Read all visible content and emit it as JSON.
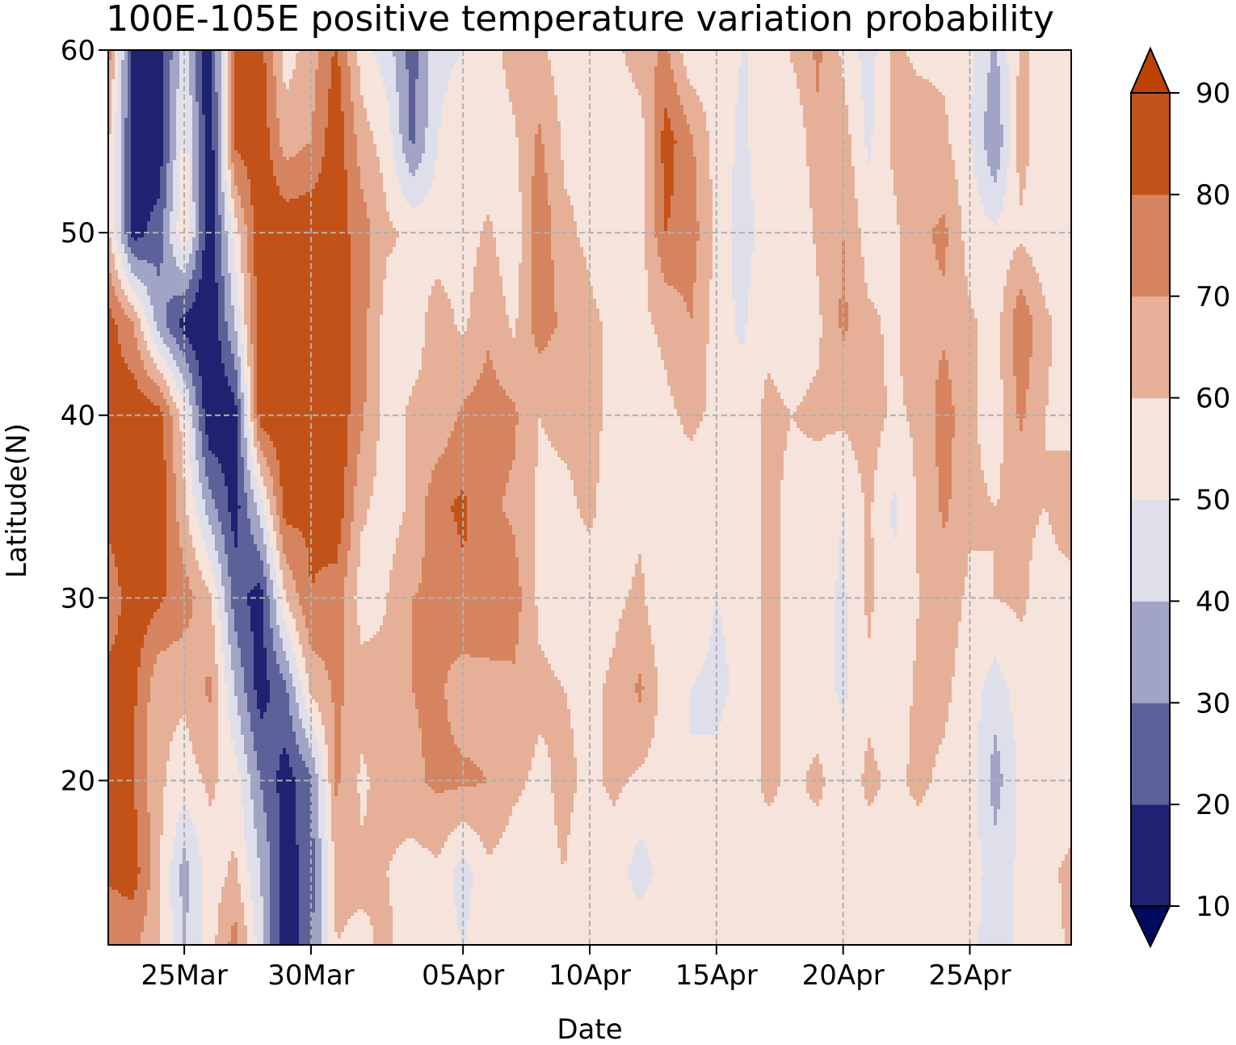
{
  "chart_data": {
    "type": "heatmap",
    "subtype": "filled-contour",
    "title": "100E-105E positive temperature variation probability",
    "xlabel": "Date",
    "ylabel": "Latitude(N)",
    "x_ticks": [
      "25Mar",
      "30Mar",
      "05Apr",
      "10Apr",
      "15Apr",
      "20Apr",
      "25Apr"
    ],
    "x_range": [
      "22Mar",
      "29Apr"
    ],
    "y_ticks": [
      20,
      30,
      40,
      50,
      60
    ],
    "y_range": [
      11,
      60
    ],
    "grid": true,
    "grid_style": "dashed",
    "colorbar": {
      "position": "right",
      "levels": [
        10,
        20,
        30,
        40,
        50,
        60,
        70,
        80,
        90
      ],
      "tick_labels": [
        "10",
        "20",
        "30",
        "40",
        "50",
        "60",
        "70",
        "80",
        "90"
      ],
      "extend": "both",
      "colors": [
        "#000b5e",
        "#1f2270",
        "#5d619a",
        "#a2a4c6",
        "#dedfea",
        "#f5e3dc",
        "#e5b097",
        "#d6845f",
        "#c35219",
        "#bd4200"
      ]
    },
    "x_dates": [
      "22Mar",
      "23Mar",
      "24Mar",
      "25Mar",
      "26Mar",
      "27Mar",
      "28Mar",
      "29Mar",
      "30Mar",
      "31Mar",
      "01Apr",
      "02Apr",
      "03Apr",
      "04Apr",
      "05Apr",
      "06Apr",
      "07Apr",
      "08Apr",
      "09Apr",
      "10Apr",
      "11Apr",
      "12Apr",
      "13Apr",
      "14Apr",
      "15Apr",
      "16Apr",
      "17Apr",
      "18Apr",
      "19Apr",
      "20Apr",
      "21Apr",
      "22Apr",
      "23Apr",
      "24Apr",
      "25Apr",
      "26Apr",
      "27Apr",
      "28Apr",
      "29Apr"
    ],
    "latitudes": [
      60,
      55,
      50,
      45,
      40,
      35,
      30,
      25,
      20,
      15,
      11
    ],
    "values": [
      [
        75,
        15,
        15,
        45,
        10,
        85,
        85,
        55,
        65,
        82,
        55,
        45,
        25,
        48,
        50,
        55,
        65,
        62,
        55,
        58,
        58,
        65,
        72,
        52,
        55,
        50,
        50,
        62,
        72,
        58,
        45,
        62,
        58,
        58,
        52,
        38,
        62,
        55,
        55
      ],
      [
        62,
        15,
        12,
        55,
        10,
        82,
        88,
        65,
        70,
        88,
        65,
        55,
        28,
        50,
        55,
        52,
        58,
        72,
        58,
        58,
        52,
        55,
        85,
        72,
        55,
        48,
        55,
        50,
        68,
        65,
        48,
        62,
        65,
        62,
        52,
        30,
        65,
        52,
        58
      ],
      [
        62,
        15,
        25,
        60,
        10,
        55,
        88,
        88,
        88,
        85,
        75,
        62,
        58,
        55,
        55,
        62,
        52,
        78,
        62,
        58,
        52,
        55,
        80,
        75,
        58,
        45,
        55,
        50,
        62,
        70,
        55,
        58,
        68,
        72,
        55,
        52,
        58,
        52,
        55
      ],
      [
        85,
        70,
        35,
        15,
        10,
        40,
        88,
        88,
        88,
        88,
        75,
        55,
        55,
        65,
        58,
        68,
        58,
        75,
        68,
        62,
        58,
        58,
        62,
        70,
        55,
        48,
        58,
        55,
        58,
        72,
        62,
        58,
        68,
        68,
        62,
        55,
        78,
        62,
        55
      ],
      [
        85,
        88,
        85,
        55,
        10,
        15,
        85,
        88,
        88,
        88,
        72,
        55,
        62,
        62,
        72,
        75,
        72,
        60,
        62,
        62,
        58,
        55,
        58,
        62,
        58,
        55,
        62,
        60,
        62,
        62,
        65,
        58,
        62,
        75,
        62,
        55,
        72,
        60,
        55
      ],
      [
        85,
        88,
        88,
        62,
        35,
        15,
        45,
        85,
        82,
        88,
        62,
        55,
        62,
        78,
        82,
        72,
        68,
        58,
        58,
        62,
        55,
        58,
        58,
        55,
        50,
        55,
        62,
        58,
        55,
        50,
        62,
        48,
        62,
        72,
        62,
        60,
        62,
        60,
        68
      ],
      [
        72,
        88,
        82,
        75,
        62,
        25,
        15,
        60,
        80,
        75,
        55,
        60,
        70,
        72,
        78,
        80,
        75,
        58,
        55,
        55,
        58,
        62,
        50,
        55,
        50,
        52,
        62,
        58,
        55,
        48,
        62,
        52,
        60,
        65,
        58,
        60,
        62,
        55,
        55
      ],
      [
        85,
        82,
        62,
        62,
        72,
        40,
        15,
        28,
        62,
        72,
        65,
        62,
        70,
        72,
        65,
        65,
        68,
        62,
        60,
        58,
        62,
        72,
        55,
        50,
        48,
        52,
        62,
        58,
        55,
        48,
        58,
        55,
        62,
        62,
        55,
        45,
        55,
        60,
        55
      ],
      [
        85,
        80,
        62,
        55,
        62,
        55,
        30,
        15,
        28,
        72,
        58,
        65,
        68,
        72,
        72,
        70,
        62,
        58,
        62,
        58,
        62,
        58,
        55,
        50,
        52,
        55,
        62,
        58,
        62,
        55,
        62,
        58,
        62,
        58,
        55,
        35,
        52,
        55,
        55
      ],
      [
        82,
        85,
        62,
        35,
        55,
        62,
        40,
        15,
        25,
        62,
        62,
        60,
        55,
        58,
        45,
        58,
        55,
        58,
        60,
        55,
        55,
        45,
        55,
        50,
        52,
        55,
        55,
        60,
        55,
        55,
        55,
        58,
        55,
        52,
        55,
        45,
        52,
        58,
        62
      ],
      [
        72,
        72,
        62,
        40,
        55,
        75,
        45,
        10,
        28,
        60,
        58,
        62,
        55,
        55,
        50,
        55,
        55,
        55,
        58,
        55,
        55,
        58,
        55,
        52,
        52,
        55,
        55,
        58,
        55,
        55,
        55,
        55,
        55,
        58,
        55,
        40,
        55,
        55,
        62
      ]
    ]
  }
}
